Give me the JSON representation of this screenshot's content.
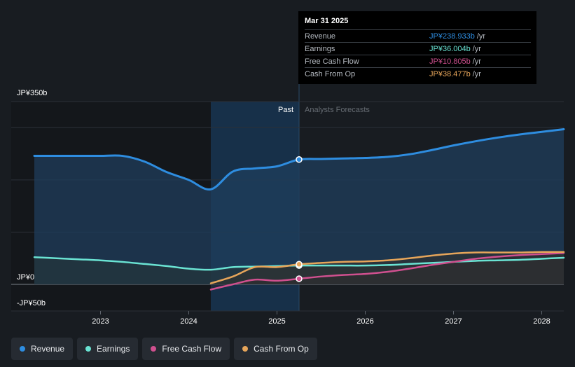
{
  "chart_data": {
    "type": "area",
    "title": "",
    "currency_labels": {
      "top": "JP¥350b",
      "zero": "JP¥0",
      "bottom": "-JP¥50b"
    },
    "ylim": [
      -50,
      350
    ],
    "x_ticks": [
      "2023",
      "2024",
      "2025",
      "2026",
      "2027",
      "2028"
    ],
    "xlim": [
      2022.25,
      2028.25
    ],
    "regions": {
      "past_label": "Past",
      "forecast_label": "Analysts Forecasts",
      "divider_x": 2025.25,
      "past_band_start": 2024.25
    },
    "series": [
      {
        "name": "Revenue",
        "color": "#2e8de0",
        "x": [
          2022.25,
          2022.5,
          2022.75,
          2023.0,
          2023.25,
          2023.5,
          2023.75,
          2024.0,
          2024.25,
          2024.5,
          2024.75,
          2025.0,
          2025.25,
          2025.5,
          2025.75,
          2026.0,
          2026.25,
          2026.5,
          2026.75,
          2027.0,
          2027.25,
          2027.5,
          2027.75,
          2028.0,
          2028.25
        ],
        "values": [
          246,
          246,
          246,
          246,
          246,
          235,
          215,
          200,
          182,
          216,
          222,
          226,
          239,
          240,
          241,
          242,
          244,
          249,
          257,
          266,
          274,
          281,
          287,
          292,
          297
        ]
      },
      {
        "name": "Earnings",
        "color": "#6ae3d3",
        "x": [
          2022.25,
          2022.5,
          2022.75,
          2023.0,
          2023.25,
          2023.5,
          2023.75,
          2024.0,
          2024.25,
          2024.5,
          2024.75,
          2025.0,
          2025.25,
          2025.5,
          2025.75,
          2026.0,
          2026.25,
          2026.5,
          2026.75,
          2027.0,
          2027.25,
          2027.5,
          2027.75,
          2028.0,
          2028.25
        ],
        "values": [
          52,
          50,
          48,
          46,
          43,
          39,
          35,
          30,
          28,
          33,
          34,
          35,
          36,
          36,
          36,
          36,
          37,
          39,
          41,
          43,
          45,
          46,
          47,
          49,
          51
        ]
      },
      {
        "name": "Free Cash Flow",
        "color": "#d0508f",
        "x": [
          2024.25,
          2024.5,
          2024.75,
          2025.0,
          2025.25,
          2025.5,
          2025.75,
          2026.0,
          2026.25,
          2026.5,
          2026.75,
          2027.0,
          2027.25,
          2027.5,
          2027.75,
          2028.0,
          2028.25
        ],
        "values": [
          -10,
          0,
          9,
          7,
          10.8,
          15,
          18,
          20,
          24,
          30,
          37,
          43,
          49,
          53,
          56,
          58,
          60
        ]
      },
      {
        "name": "Cash From Op",
        "color": "#e6a55a",
        "x": [
          2024.25,
          2024.5,
          2024.75,
          2025.0,
          2025.25,
          2025.5,
          2025.75,
          2026.0,
          2026.25,
          2026.5,
          2026.75,
          2027.0,
          2027.25,
          2027.5,
          2027.75,
          2028.0,
          2028.25
        ],
        "values": [
          2,
          15,
          33,
          33,
          38.5,
          41,
          43,
          44,
          46,
          50,
          55,
          59,
          61,
          61,
          61,
          62,
          62
        ]
      }
    ]
  },
  "tooltip": {
    "date": "Mar 31 2025",
    "rows": [
      {
        "name": "Revenue",
        "value": "JP¥238.933b",
        "unit": "/yr",
        "color": "#2e8de0"
      },
      {
        "name": "Earnings",
        "value": "JP¥36.004b",
        "unit": "/yr",
        "color": "#6ae3d3"
      },
      {
        "name": "Free Cash Flow",
        "value": "JP¥10.805b",
        "unit": "/yr",
        "color": "#d0508f"
      },
      {
        "name": "Cash From Op",
        "value": "JP¥38.477b",
        "unit": "/yr",
        "color": "#e6a55a"
      }
    ]
  },
  "legend": [
    {
      "label": "Revenue",
      "color": "#2e8de0"
    },
    {
      "label": "Earnings",
      "color": "#6ae3d3"
    },
    {
      "label": "Free Cash Flow",
      "color": "#d0508f"
    },
    {
      "label": "Cash From Op",
      "color": "#e6a55a"
    }
  ]
}
